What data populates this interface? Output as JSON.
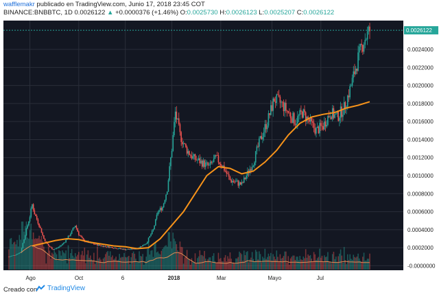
{
  "header": {
    "author": "wafflemakr",
    "published": " publicado en TradingView.com, Junio 17, 2018 23:45 COT",
    "symbol": "BINANCE:BNBBTC, 1D",
    "last": "0.0026122",
    "change": "+0.0000376 (+1.46%)",
    "o_label": "O:",
    "o_value": "0.0025730",
    "h_label": "H:",
    "h_value": "0.0026123",
    "l_label": "L:",
    "l_value": "0.0025207",
    "c_label": "C:",
    "c_value": "0.0026122"
  },
  "footer": {
    "created": "Creado con",
    "brand": "TradingView"
  },
  "chart_data": {
    "type": "candlestick",
    "symbol": "BNBBTC",
    "interval": "1D",
    "x_ticks": [
      "Ago",
      "Oct",
      "6",
      "2018",
      "Mar",
      "Mayo",
      "Jul"
    ],
    "y_ticks": [
      "0.0026122",
      "0.0024000",
      "0.0022000",
      "0.0020000",
      "0.0018000",
      "0.0016000",
      "0.0014000",
      "0.0012000",
      "0.0010000",
      "0.0008000",
      "0.0006000",
      "0.0004000",
      "0.0002000",
      "-0.0000000"
    ],
    "ylim": [
      -5e-05,
      0.00272
    ],
    "last_price": 0.0026122,
    "price_path": [
      [
        0,
        0.0001
      ],
      [
        5,
        0.00012
      ],
      [
        10,
        0.00015
      ],
      [
        14,
        0.00035
      ],
      [
        18,
        0.00055
      ],
      [
        20,
        0.00068
      ],
      [
        22,
        0.00058
      ],
      [
        26,
        0.00045
      ],
      [
        30,
        0.0003
      ],
      [
        34,
        0.00022
      ],
      [
        38,
        0.00018
      ],
      [
        42,
        0.0002
      ],
      [
        46,
        0.00024
      ],
      [
        50,
        0.0003
      ],
      [
        54,
        0.00038
      ],
      [
        57,
        0.00045
      ],
      [
        60,
        0.00035
      ],
      [
        64,
        0.00028
      ],
      [
        70,
        0.00025
      ],
      [
        80,
        0.00022
      ],
      [
        90,
        0.0002
      ],
      [
        100,
        0.00018
      ],
      [
        110,
        0.00019
      ],
      [
        118,
        0.00025
      ],
      [
        124,
        0.0004
      ],
      [
        128,
        0.0006
      ],
      [
        132,
        0.00065
      ],
      [
        136,
        0.00085
      ],
      [
        140,
        0.0013
      ],
      [
        143,
        0.0017
      ],
      [
        147,
        0.00145
      ],
      [
        152,
        0.0013
      ],
      [
        158,
        0.0012
      ],
      [
        165,
        0.00115
      ],
      [
        172,
        0.0011
      ],
      [
        178,
        0.0012
      ],
      [
        184,
        0.0011
      ],
      [
        190,
        0.00095
      ],
      [
        196,
        0.00092
      ],
      [
        200,
        0.0009
      ],
      [
        204,
        0.001
      ],
      [
        210,
        0.00115
      ],
      [
        216,
        0.0014
      ],
      [
        222,
        0.0016
      ],
      [
        228,
        0.00185
      ],
      [
        234,
        0.0018
      ],
      [
        240,
        0.0017
      ],
      [
        246,
        0.0016
      ],
      [
        252,
        0.0017
      ],
      [
        258,
        0.0016
      ],
      [
        264,
        0.0015
      ],
      [
        270,
        0.00155
      ],
      [
        276,
        0.0017
      ],
      [
        282,
        0.00165
      ],
      [
        288,
        0.00175
      ],
      [
        294,
        0.002
      ],
      [
        300,
        0.0023
      ],
      [
        305,
        0.0025
      ],
      [
        310,
        0.0026122
      ]
    ],
    "moving_average": [
      [
        20,
        0.00022
      ],
      [
        30,
        0.00025
      ],
      [
        40,
        0.00028
      ],
      [
        50,
        0.0003
      ],
      [
        60,
        0.00029
      ],
      [
        70,
        0.00026
      ],
      [
        80,
        0.00024
      ],
      [
        90,
        0.00022
      ],
      [
        100,
        0.00021
      ],
      [
        110,
        0.00019
      ],
      [
        120,
        0.0002
      ],
      [
        130,
        0.0003
      ],
      [
        140,
        0.00045
      ],
      [
        150,
        0.0006
      ],
      [
        160,
        0.0008
      ],
      [
        170,
        0.001
      ],
      [
        180,
        0.0011
      ],
      [
        190,
        0.00108
      ],
      [
        200,
        0.00102
      ],
      [
        210,
        0.00105
      ],
      [
        220,
        0.00115
      ],
      [
        230,
        0.00128
      ],
      [
        240,
        0.00145
      ],
      [
        250,
        0.00158
      ],
      [
        260,
        0.00165
      ],
      [
        270,
        0.00168
      ],
      [
        280,
        0.0017
      ],
      [
        290,
        0.00175
      ],
      [
        300,
        0.00178
      ],
      [
        310,
        0.00182
      ]
    ],
    "colors": {
      "up": "#26a69a",
      "down": "#ef5350",
      "ma": "#f7931a",
      "background": "#131722",
      "grid": "#2a2e39",
      "volume_ma": "#e28a54"
    }
  }
}
